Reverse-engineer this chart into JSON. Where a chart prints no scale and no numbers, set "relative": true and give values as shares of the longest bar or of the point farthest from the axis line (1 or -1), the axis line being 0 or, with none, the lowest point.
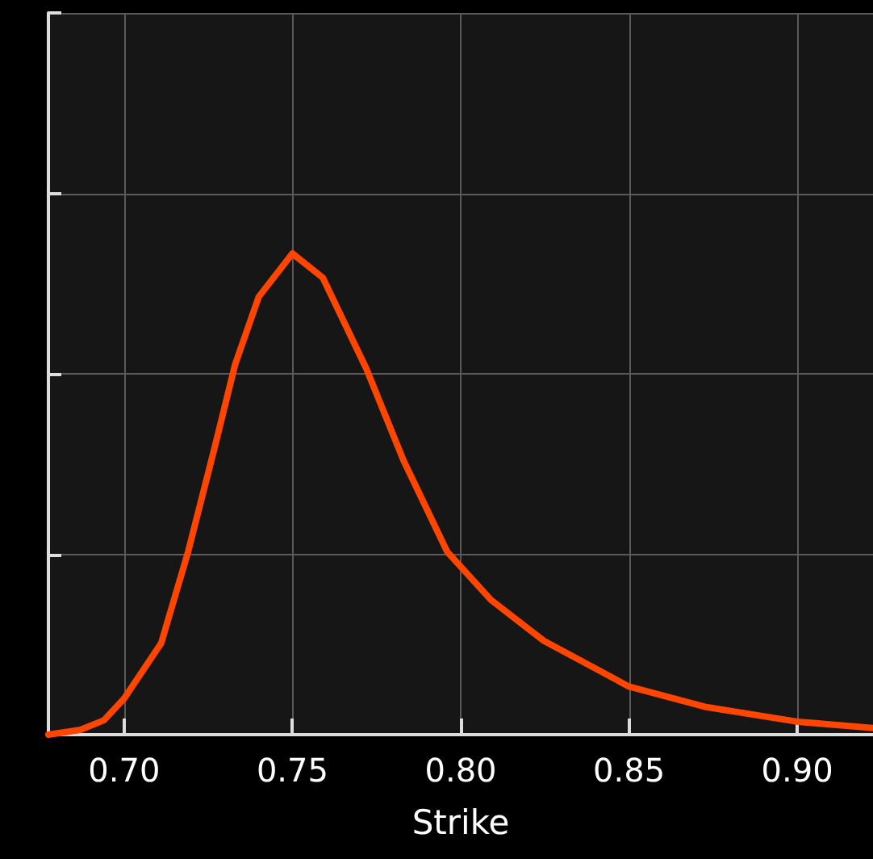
{
  "chart_data": {
    "type": "line",
    "xlabel": "Strike",
    "relative": true,
    "grid": true,
    "marker": "none",
    "line_style": "solid",
    "xlim": [
      0.6775,
      0.9225
    ],
    "xticks": [
      {
        "value": 0.7,
        "label": "0.70"
      },
      0.75,
      {
        "value": 0.8,
        "label": "0.80"
      },
      0.85,
      {
        "value": 0.9,
        "label": "0.90"
      }
    ],
    "x": [
      0.6775,
      0.687,
      0.694,
      0.7,
      0.711,
      0.719,
      0.727,
      0.733,
      0.74,
      0.75,
      0.759,
      0.772,
      0.783,
      0.796,
      0.809,
      0.8247,
      0.85,
      0.8725,
      0.9,
      0.9225
    ],
    "series": [
      {
        "color": "#ff4500",
        "values": [
          0,
          0.01,
          0.03,
          0.075,
          0.19,
          0.38,
          0.6,
          0.77,
          0.91,
          1,
          0.95,
          0.76,
          0.57,
          0.38,
          0.28,
          0.195,
          0.1,
          0.058,
          0.027,
          0.014
        ]
      }
    ]
  }
}
